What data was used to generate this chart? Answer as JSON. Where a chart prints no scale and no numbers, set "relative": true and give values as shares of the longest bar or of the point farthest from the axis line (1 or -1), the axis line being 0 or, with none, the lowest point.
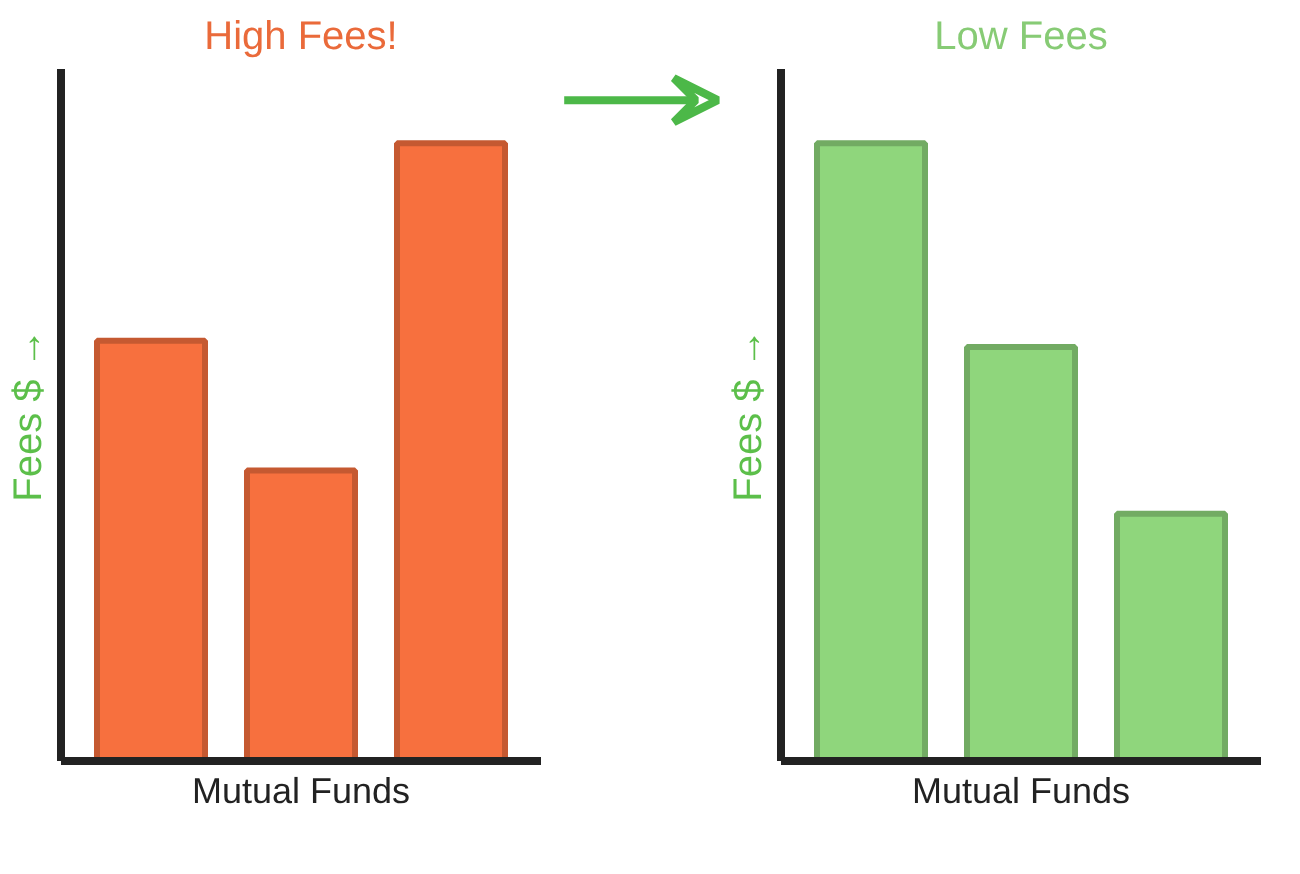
{
  "chart_data": [
    {
      "type": "bar",
      "title": "High Fees!",
      "xlabel": "Mutual Funds",
      "ylabel": "Fees $ →",
      "categories": [
        null,
        null,
        null
      ],
      "values": [
        0.68,
        0.47,
        1
      ],
      "colors": [
        "#f7703e",
        "#f7703e",
        "#f7703e"
      ],
      "relative": true
    },
    {
      "type": "bar",
      "title": "Low Fees",
      "xlabel": "Mutual Funds",
      "ylabel": "Fees $ →",
      "categories": [
        null,
        null,
        null
      ],
      "values": [
        1,
        0.67,
        0.4
      ],
      "colors": [
        "#8fd67c",
        "#8fd67c",
        "#8fd67c"
      ],
      "relative": true
    }
  ]
}
